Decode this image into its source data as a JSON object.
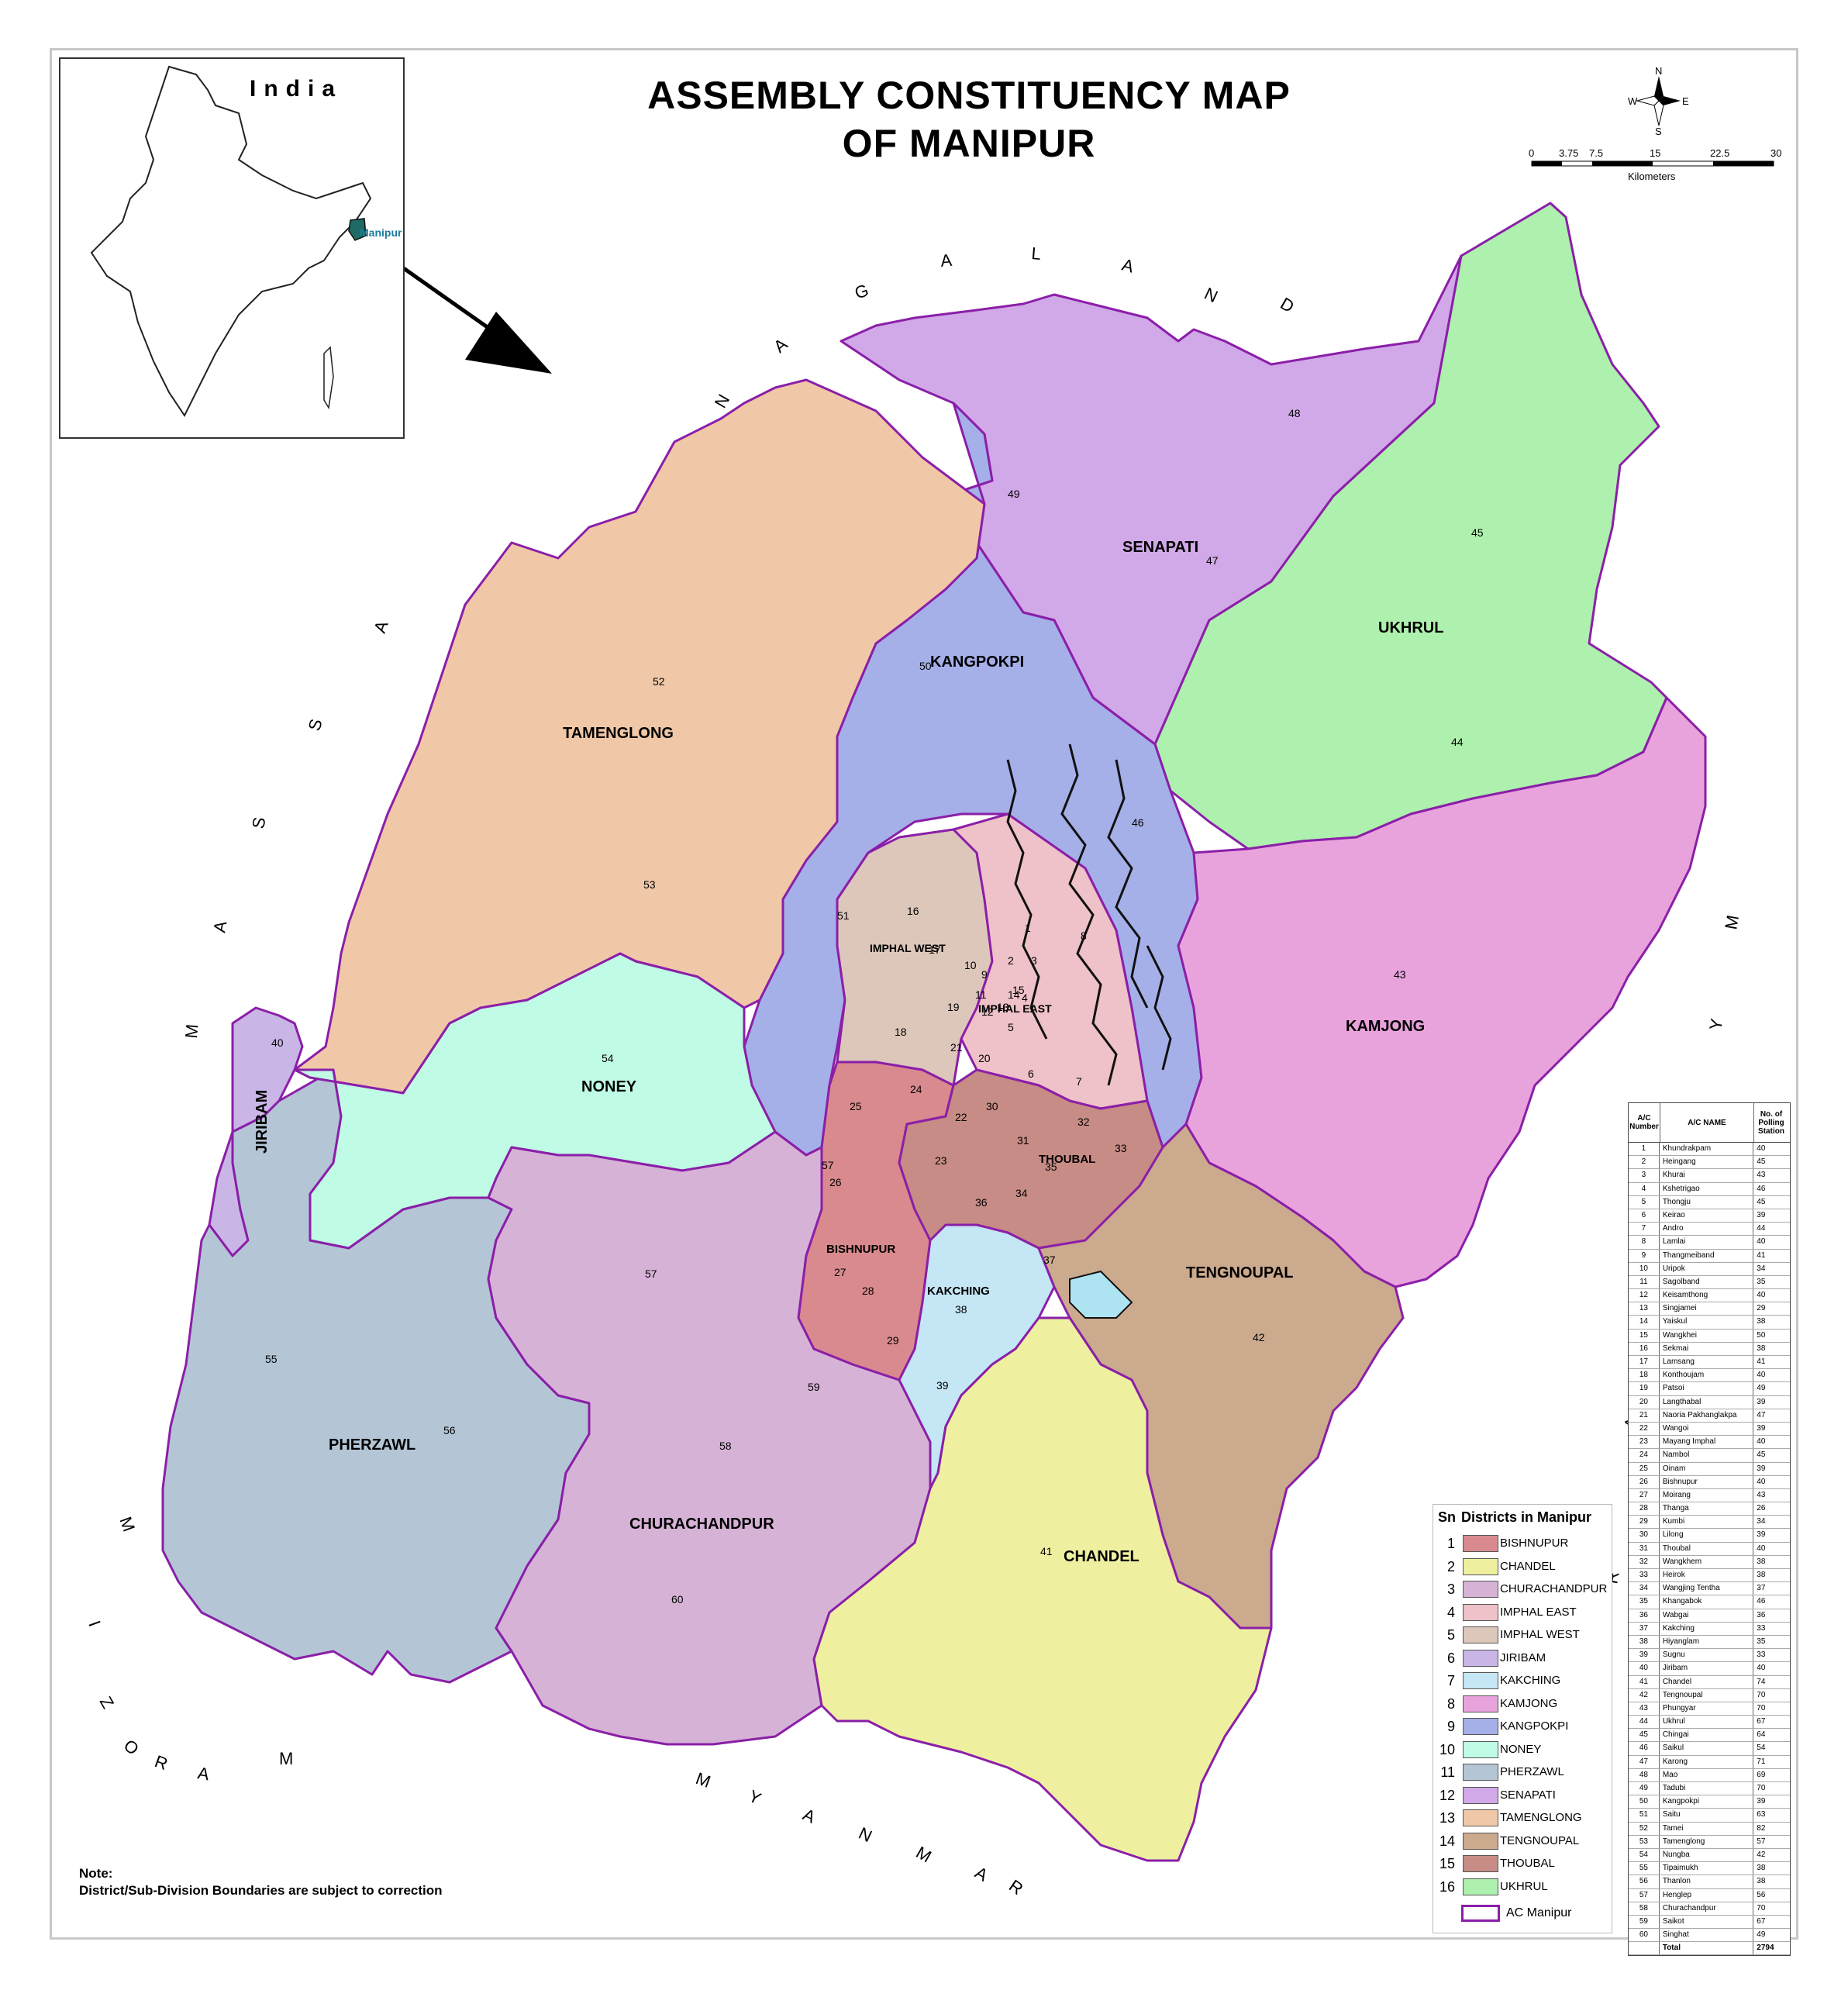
{
  "title_line1": "ASSEMBLY CONSTITUENCY MAP",
  "title_line2": "OF MANIPUR",
  "inset": {
    "title": "India",
    "highlight_label": "Manipur"
  },
  "compass": {
    "n": "N",
    "s": "S",
    "e": "E",
    "w": "W"
  },
  "scale": {
    "ticks": [
      "0",
      "3.75",
      "7.5",
      "15",
      "22.5",
      "30"
    ],
    "unit": "Kilometers"
  },
  "neighbours": {
    "nagaland": "NAGALAND",
    "assam": "ASSAM",
    "mizoram": "MIZORAM",
    "myanmar_south": "MYANMAR",
    "myanmar_east": "MYANMAR"
  },
  "districts": [
    {
      "sn": "1",
      "name": "BISHNUPUR",
      "color": "#d98a8e"
    },
    {
      "sn": "2",
      "name": "CHANDEL",
      "color": "#eef0a0"
    },
    {
      "sn": "3",
      "name": "CHURACHANDPUR",
      "color": "#d6b3d6"
    },
    {
      "sn": "4",
      "name": "IMPHAL EAST",
      "color": "#efc1c8"
    },
    {
      "sn": "5",
      "name": "IMPHAL WEST",
      "color": "#ddc7bb"
    },
    {
      "sn": "6",
      "name": "JIRIBAM",
      "color": "#c9b6e6"
    },
    {
      "sn": "7",
      "name": "KAKCHING",
      "color": "#c4e6f5"
    },
    {
      "sn": "8",
      "name": "KAMJONG",
      "color": "#e9a3dc"
    },
    {
      "sn": "9",
      "name": "KANGPOKPI",
      "color": "#a5b0e9"
    },
    {
      "sn": "10",
      "name": "NONEY",
      "color": "#c0fbe5"
    },
    {
      "sn": "11",
      "name": "PHERZAWL",
      "color": "#b4c6d6"
    },
    {
      "sn": "12",
      "name": "SENAPATI",
      "color": "#d1a8e8"
    },
    {
      "sn": "13",
      "name": "TAMENGLONG",
      "color": "#f0c8a8"
    },
    {
      "sn": "14",
      "name": "TENGNOUPAL",
      "color": "#ccaa8e"
    },
    {
      "sn": "15",
      "name": "THOUBAL",
      "color": "#c78c85"
    },
    {
      "sn": "16",
      "name": "UKHRUL",
      "color": "#aef0ad"
    }
  ],
  "legend": {
    "sn_header": "Sn",
    "title": "Districts in Manipur",
    "ac_label": "AC Manipur"
  },
  "map_district_labels": {
    "kangpokpi": "KANGPOKPI",
    "senapati": "SENAPATI",
    "ukhrul": "UKHRUL",
    "tamenglong": "TAMENGLONG",
    "imphal_west": "IMPHAL WEST",
    "imphal_east": "IMPHAL EAST",
    "kamjong": "KAMJONG",
    "noney": "NONEY",
    "jiribam": "JIRIBAM",
    "thoubal": "THOUBAL",
    "bishnupur": "BISHNUPUR",
    "kakching": "KAKCHING",
    "tengnoupal": "TENGNOUPAL",
    "pherzawl": "PHERZAWL",
    "churachandpur": "CHURACHANDPUR",
    "chandel": "CHANDEL"
  },
  "constituencies": [
    {
      "no": "1",
      "name": "Khundrakpam",
      "ps": "40"
    },
    {
      "no": "2",
      "name": "Heingang",
      "ps": "45"
    },
    {
      "no": "3",
      "name": "Khurai",
      "ps": "43"
    },
    {
      "no": "4",
      "name": "Kshetrigao",
      "ps": "46"
    },
    {
      "no": "5",
      "name": "Thongju",
      "ps": "45"
    },
    {
      "no": "6",
      "name": "Keirao",
      "ps": "39"
    },
    {
      "no": "7",
      "name": "Andro",
      "ps": "44"
    },
    {
      "no": "8",
      "name": "Lamlai",
      "ps": "40"
    },
    {
      "no": "9",
      "name": "Thangmeiband",
      "ps": "41"
    },
    {
      "no": "10",
      "name": "Uripok",
      "ps": "34"
    },
    {
      "no": "11",
      "name": "Sagolband",
      "ps": "35"
    },
    {
      "no": "12",
      "name": "Keisamthong",
      "ps": "40"
    },
    {
      "no": "13",
      "name": "Singjamei",
      "ps": "29"
    },
    {
      "no": "14",
      "name": "Yaiskul",
      "ps": "38"
    },
    {
      "no": "15",
      "name": "Wangkhei",
      "ps": "50"
    },
    {
      "no": "16",
      "name": "Sekmai",
      "ps": "38"
    },
    {
      "no": "17",
      "name": "Lamsang",
      "ps": "41"
    },
    {
      "no": "18",
      "name": "Konthoujam",
      "ps": "40"
    },
    {
      "no": "19",
      "name": "Patsoi",
      "ps": "49"
    },
    {
      "no": "20",
      "name": "Langthabal",
      "ps": "39"
    },
    {
      "no": "21",
      "name": "Naoria Pakhanglakpa",
      "ps": "47"
    },
    {
      "no": "22",
      "name": "Wangoi",
      "ps": "39"
    },
    {
      "no": "23",
      "name": "Mayang Imphal",
      "ps": "40"
    },
    {
      "no": "24",
      "name": "Nambol",
      "ps": "45"
    },
    {
      "no": "25",
      "name": "Oinam",
      "ps": "39"
    },
    {
      "no": "26",
      "name": "Bishnupur",
      "ps": "40"
    },
    {
      "no": "27",
      "name": "Moirang",
      "ps": "43"
    },
    {
      "no": "28",
      "name": "Thanga",
      "ps": "26"
    },
    {
      "no": "29",
      "name": "Kumbi",
      "ps": "34"
    },
    {
      "no": "30",
      "name": "Lilong",
      "ps": "39"
    },
    {
      "no": "31",
      "name": "Thoubal",
      "ps": "40"
    },
    {
      "no": "32",
      "name": "Wangkhem",
      "ps": "38"
    },
    {
      "no": "33",
      "name": "Heirok",
      "ps": "38"
    },
    {
      "no": "34",
      "name": "Wangjing Tentha",
      "ps": "37"
    },
    {
      "no": "35",
      "name": "Khangabok",
      "ps": "46"
    },
    {
      "no": "36",
      "name": "Wabgai",
      "ps": "36"
    },
    {
      "no": "37",
      "name": "Kakching",
      "ps": "33"
    },
    {
      "no": "38",
      "name": "Hiyanglam",
      "ps": "35"
    },
    {
      "no": "39",
      "name": "Sugnu",
      "ps": "33"
    },
    {
      "no": "40",
      "name": "Jiribam",
      "ps": "40"
    },
    {
      "no": "41",
      "name": "Chandel",
      "ps": "74"
    },
    {
      "no": "42",
      "name": "Tengnoupal",
      "ps": "70"
    },
    {
      "no": "43",
      "name": "Phungyar",
      "ps": "70"
    },
    {
      "no": "44",
      "name": "Ukhrul",
      "ps": "67"
    },
    {
      "no": "45",
      "name": "Chingai",
      "ps": "64"
    },
    {
      "no": "46",
      "name": "Saikul",
      "ps": "54"
    },
    {
      "no": "47",
      "name": "Karong",
      "ps": "71"
    },
    {
      "no": "48",
      "name": "Mao",
      "ps": "69"
    },
    {
      "no": "49",
      "name": "Tadubi",
      "ps": "70"
    },
    {
      "no": "50",
      "name": "Kangpokpi",
      "ps": "39"
    },
    {
      "no": "51",
      "name": "Saitu",
      "ps": "63"
    },
    {
      "no": "52",
      "name": "Tamei",
      "ps": "82"
    },
    {
      "no": "53",
      "name": "Tamenglong",
      "ps": "57"
    },
    {
      "no": "54",
      "name": "Nungba",
      "ps": "42"
    },
    {
      "no": "55",
      "name": "Tipaimukh",
      "ps": "38"
    },
    {
      "no": "56",
      "name": "Thanlon",
      "ps": "38"
    },
    {
      "no": "57",
      "name": "Henglep",
      "ps": "56"
    },
    {
      "no": "58",
      "name": "Churachandpur",
      "ps": "70"
    },
    {
      "no": "59",
      "name": "Saikot",
      "ps": "67"
    },
    {
      "no": "60",
      "name": "Singhat",
      "ps": "49"
    }
  ],
  "table": {
    "h1": "A/C Number",
    "h2": "A/C NAME",
    "h3": "No. of Polling Station",
    "total_label": "Total",
    "total_value": "2794"
  },
  "note": {
    "line1": "Note:",
    "line2": "District/Sub-Division Boundaries are subject to correction"
  }
}
